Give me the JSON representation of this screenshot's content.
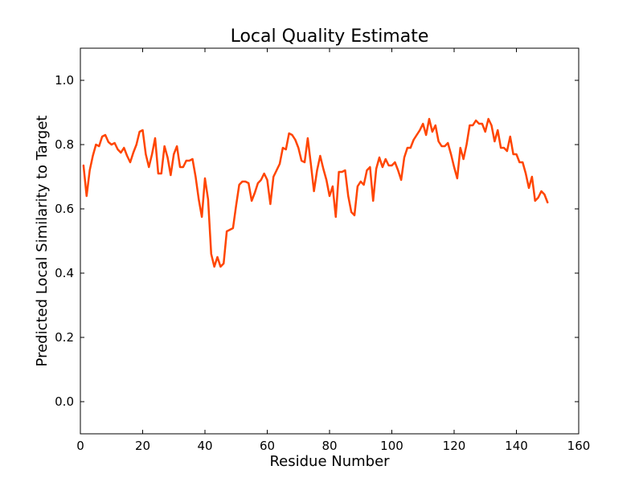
{
  "chart_data": {
    "type": "line",
    "title": "Local Quality Estimate",
    "xlabel": "Residue Number",
    "ylabel": "Predicted Local Similarity to Target",
    "xlim": [
      0,
      160
    ],
    "ylim": [
      -0.1,
      1.1
    ],
    "xticks": [
      0,
      20,
      40,
      60,
      80,
      100,
      120,
      140,
      160
    ],
    "yticks": [
      0.0,
      0.2,
      0.4,
      0.6,
      0.8,
      1.0
    ],
    "xtick_labels": [
      "0",
      "20",
      "40",
      "60",
      "80",
      "100",
      "120",
      "140",
      "160"
    ],
    "ytick_labels": [
      "0.0",
      "0.2",
      "0.4",
      "0.6",
      "0.8",
      "1.0"
    ],
    "grid": false,
    "legend": "none",
    "series": [
      {
        "color": "#ff4500",
        "x": [
          1,
          2,
          3,
          4,
          5,
          6,
          7,
          8,
          9,
          10,
          11,
          12,
          13,
          14,
          15,
          16,
          17,
          18,
          19,
          20,
          21,
          22,
          23,
          24,
          25,
          26,
          27,
          28,
          29,
          30,
          31,
          32,
          33,
          34,
          35,
          36,
          37,
          38,
          39,
          40,
          41,
          42,
          43,
          44,
          45,
          46,
          47,
          48,
          49,
          50,
          51,
          52,
          53,
          54,
          55,
          56,
          57,
          58,
          59,
          60,
          61,
          62,
          63,
          64,
          65,
          66,
          67,
          68,
          69,
          70,
          71,
          72,
          73,
          74,
          75,
          76,
          77,
          78,
          79,
          80,
          81,
          82,
          83,
          84,
          85,
          86,
          87,
          88,
          89,
          90,
          91,
          92,
          93,
          94,
          95,
          96,
          97,
          98,
          99,
          100,
          101,
          102,
          103,
          104,
          105,
          106,
          107,
          108,
          109,
          110,
          111,
          112,
          113,
          114,
          115,
          116,
          117,
          118,
          119,
          120,
          121,
          122,
          123,
          124,
          125,
          126,
          127,
          128,
          129,
          130,
          131,
          132,
          133,
          134,
          135,
          136,
          137,
          138,
          139,
          140,
          141,
          142,
          143,
          144,
          145,
          146,
          147,
          148,
          149,
          150
        ],
        "y": [
          0.735,
          0.64,
          0.72,
          0.765,
          0.8,
          0.795,
          0.825,
          0.83,
          0.808,
          0.8,
          0.805,
          0.785,
          0.775,
          0.79,
          0.765,
          0.745,
          0.775,
          0.8,
          0.84,
          0.845,
          0.77,
          0.73,
          0.77,
          0.82,
          0.71,
          0.71,
          0.795,
          0.76,
          0.705,
          0.77,
          0.795,
          0.73,
          0.73,
          0.75,
          0.75,
          0.755,
          0.7,
          0.63,
          0.575,
          0.695,
          0.63,
          0.46,
          0.42,
          0.45,
          0.42,
          0.43,
          0.53,
          0.535,
          0.54,
          0.61,
          0.675,
          0.685,
          0.685,
          0.68,
          0.625,
          0.65,
          0.68,
          0.69,
          0.71,
          0.69,
          0.615,
          0.7,
          0.72,
          0.74,
          0.79,
          0.785,
          0.835,
          0.83,
          0.815,
          0.79,
          0.75,
          0.745,
          0.82,
          0.74,
          0.655,
          0.72,
          0.765,
          0.725,
          0.69,
          0.64,
          0.67,
          0.575,
          0.715,
          0.715,
          0.72,
          0.64,
          0.59,
          0.58,
          0.67,
          0.685,
          0.675,
          0.72,
          0.73,
          0.625,
          0.725,
          0.76,
          0.73,
          0.755,
          0.735,
          0.735,
          0.745,
          0.72,
          0.69,
          0.76,
          0.79,
          0.79,
          0.815,
          0.83,
          0.845,
          0.865,
          0.83,
          0.88,
          0.84,
          0.86,
          0.81,
          0.795,
          0.795,
          0.805,
          0.77,
          0.73,
          0.695,
          0.79,
          0.755,
          0.8,
          0.86,
          0.86,
          0.875,
          0.865,
          0.865,
          0.84,
          0.88,
          0.86,
          0.81,
          0.845,
          0.79,
          0.79,
          0.78,
          0.825,
          0.77,
          0.77,
          0.745,
          0.745,
          0.71,
          0.665,
          0.7,
          0.625,
          0.635,
          0.655,
          0.645,
          0.62
        ]
      }
    ]
  }
}
